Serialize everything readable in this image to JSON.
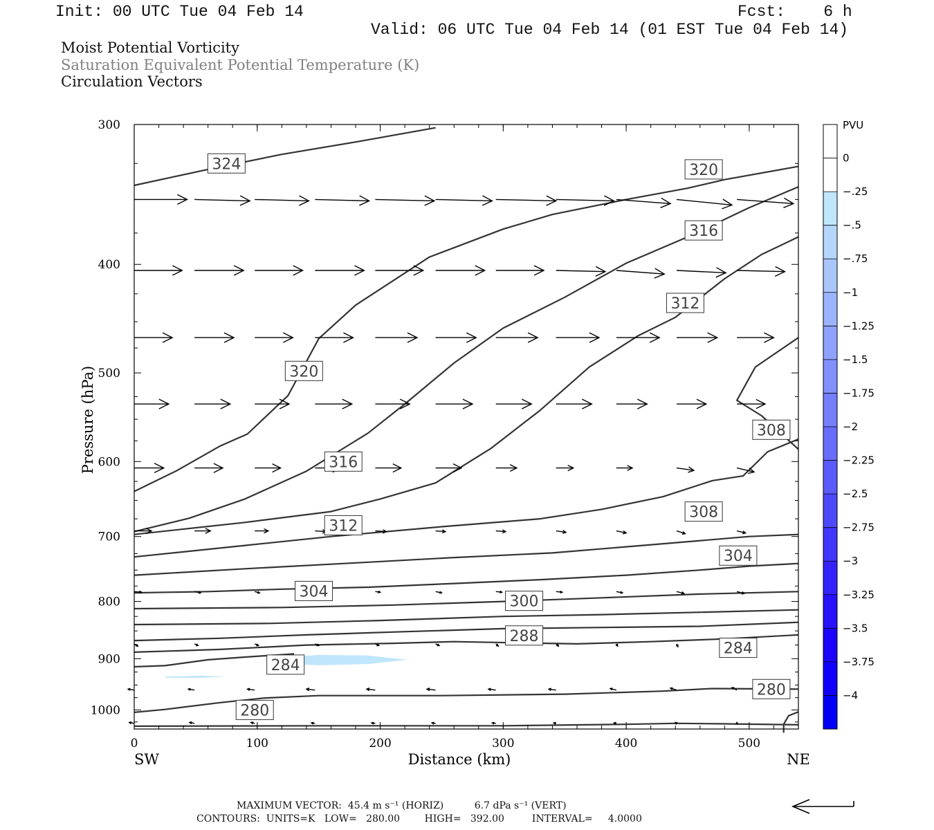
{
  "header": {
    "init": "Init: 00 UTC Tue 04 Feb 14",
    "fcst": "Fcst:    6 h",
    "valid": "Valid: 06 UTC Tue 04 Feb 14 (01 EST Tue 04 Feb 14)"
  },
  "fields": [
    "Moist Potential Vorticity",
    "Saturation Equivalent Potential Temperature (K)",
    "Circulation Vectors"
  ],
  "footer": {
    "vector_line": "MAXIMUM VECTOR:  45.4 m s⁻¹ (HORIZ)          6.7 dPa s⁻¹ (VERT)",
    "contour_line": "CONTOURS:  UNITS=K   LOW=   280.00        HIGH=   392.00         INTERVAL=     4.0000"
  },
  "colors": {
    "contour": "#333333",
    "pv_fill": "#bfe6fb",
    "frame": "#000000"
  },
  "chart_data": {
    "type": "cross-section",
    "xlabel": "Distance (km)",
    "ylabel": "Pressure (hPa)",
    "xlim": [
      0,
      540
    ],
    "ylim": [
      300,
      1040
    ],
    "y_scale": "log",
    "x_ticks": [
      0,
      100,
      200,
      300,
      400,
      500
    ],
    "y_ticks": [
      300,
      400,
      500,
      600,
      700,
      800,
      900,
      1000
    ],
    "end_labels": {
      "left": "SW",
      "right": "NE"
    },
    "colorbar": {
      "unit": "PVU",
      "ticks": [
        "0",
        "-.25",
        "-.5",
        "-.75",
        "-1",
        "-1.25",
        "-1.5",
        "-1.75",
        "-2",
        "-2.25",
        "-2.5",
        "-2.75",
        "-3",
        "-3.25",
        "-3.5",
        "-3.75",
        "-4"
      ],
      "colors": [
        "#ffffff",
        "#ffffff",
        "#bfe6fb",
        "#b5d6fb",
        "#a9c6fb",
        "#9cb4fb",
        "#8fa2fb",
        "#8290fb",
        "#757efb",
        "#686cfb",
        "#5b5afb",
        "#4e48fb",
        "#4136fb",
        "#3424fb",
        "#2812fb",
        "#1c04fb",
        "#1000fb",
        "#0000f5"
      ]
    },
    "theta_contours": [
      {
        "value": 324,
        "label": "324",
        "label_at": [
          75,
          325
        ],
        "points": [
          [
            0,
            340
          ],
          [
            60,
            329
          ],
          [
            120,
            319
          ],
          [
            180,
            311
          ],
          [
            245,
            302
          ]
        ]
      },
      {
        "value": 320,
        "label": "320",
        "label_at": [
          138,
          498
        ],
        "points": [
          [
            0,
            638
          ],
          [
            35,
            611
          ],
          [
            70,
            581
          ],
          [
            92,
            567
          ],
          [
            125,
            524
          ],
          [
            150,
            466
          ],
          [
            180,
            435
          ],
          [
            240,
            394
          ],
          [
            300,
            372
          ],
          [
            340,
            361
          ],
          [
            400,
            350
          ],
          [
            450,
            342
          ],
          [
            480,
            336
          ],
          [
            540,
            327
          ]
        ]
      },
      {
        "value": 320,
        "label": "320",
        "label_at": [
          463,
          329
        ],
        "points": []
      },
      {
        "value": 316,
        "label": "316",
        "label_at": [
          170,
          600
        ],
        "points": [
          [
            0,
            693
          ],
          [
            45,
            674
          ],
          [
            90,
            648
          ],
          [
            140,
            612
          ],
          [
            190,
            566
          ],
          [
            220,
            533
          ],
          [
            260,
            490
          ],
          [
            300,
            456
          ],
          [
            350,
            428
          ],
          [
            400,
            399
          ],
          [
            450,
            378
          ],
          [
            500,
            356
          ],
          [
            540,
            341
          ]
        ]
      },
      {
        "value": 316,
        "label": "316",
        "label_at": [
          463,
          373
        ],
        "points": []
      },
      {
        "value": 312,
        "label": "312",
        "label_at": [
          170,
          684
        ],
        "points": [
          [
            0,
            697
          ],
          [
            90,
            680
          ],
          [
            160,
            665
          ],
          [
            200,
            648
          ],
          [
            245,
            627
          ],
          [
            290,
            584
          ],
          [
            330,
            540
          ],
          [
            370,
            494
          ],
          [
            410,
            463
          ],
          [
            440,
            446
          ],
          [
            480,
            412
          ],
          [
            510,
            392
          ],
          [
            540,
            378
          ]
        ]
      },
      {
        "value": 312,
        "label": "312",
        "label_at": [
          448,
          433
        ],
        "points": []
      },
      {
        "value": 308,
        "label": "308",
        "label_at": [
          518,
          562
        ],
        "points": [
          [
            540,
            585
          ],
          [
            510,
            546
          ],
          [
            490,
            529
          ],
          [
            505,
            494
          ],
          [
            540,
            465
          ]
        ]
      },
      {
        "value": 308,
        "label": "308",
        "label_at": [
          463,
          665
        ],
        "points": [
          [
            0,
            730
          ],
          [
            90,
            713
          ],
          [
            160,
            700
          ],
          [
            250,
            686
          ],
          [
            330,
            675
          ],
          [
            380,
            662
          ],
          [
            430,
            645
          ],
          [
            470,
            624
          ],
          [
            495,
            618
          ],
          [
            515,
            588
          ],
          [
            540,
            573
          ]
        ]
      },
      {
        "value": 304,
        "label": "304",
        "label_at": [
          491,
          728
        ],
        "points": [
          [
            0,
            758
          ],
          [
            90,
            748
          ],
          [
            180,
            739
          ],
          [
            260,
            731
          ],
          [
            340,
            724
          ],
          [
            420,
            712
          ],
          [
            500,
            700
          ],
          [
            540,
            697
          ]
        ]
      },
      {
        "value": 304,
        "label": "304",
        "label_at": [
          146,
          783
        ],
        "points": [
          [
            0,
            786
          ],
          [
            60,
            784
          ],
          [
            120,
            780
          ],
          [
            190,
            777
          ],
          [
            260,
            771
          ],
          [
            330,
            765
          ],
          [
            400,
            758
          ],
          [
            460,
            750
          ],
          [
            500,
            744
          ],
          [
            540,
            740
          ]
        ]
      },
      {
        "value": 300,
        "label": "300",
        "label_at": [
          317,
          799
        ],
        "points": [
          [
            0,
            812
          ],
          [
            120,
            810
          ],
          [
            210,
            806
          ],
          [
            300,
            800
          ],
          [
            380,
            794
          ],
          [
            460,
            788
          ],
          [
            540,
            784
          ]
        ]
      },
      {
        "value": 296,
        "label": "",
        "label_at": null,
        "points": [
          [
            0,
            839
          ],
          [
            110,
            837
          ],
          [
            200,
            832
          ],
          [
            300,
            825
          ],
          [
            380,
            822
          ],
          [
            460,
            818
          ],
          [
            540,
            814
          ]
        ]
      },
      {
        "value": 292,
        "label": "",
        "label_at": null,
        "points": [
          [
            0,
            867
          ],
          [
            70,
            863
          ],
          [
            140,
            857
          ],
          [
            210,
            852
          ],
          [
            300,
            846
          ],
          [
            380,
            844
          ],
          [
            460,
            842
          ],
          [
            540,
            835
          ]
        ]
      },
      {
        "value": 288,
        "label": "288",
        "label_at": [
          317,
          858
        ],
        "points": []
      },
      {
        "value": 288,
        "label": "",
        "label_at": null,
        "points": [
          [
            0,
            888
          ],
          [
            70,
            883
          ],
          [
            140,
            875
          ],
          [
            210,
            872
          ],
          [
            260,
            869
          ],
          [
            310,
            871
          ],
          [
            360,
            873
          ],
          [
            420,
            869
          ],
          [
            480,
            864
          ],
          [
            540,
            857
          ]
        ]
      },
      {
        "value": 284,
        "label": "284",
        "label_at": [
          491,
          880
        ],
        "points": []
      },
      {
        "value": 284,
        "label": "284",
        "label_at": [
          123,
          911
        ],
        "points": [
          [
            0,
            915
          ],
          [
            25,
            913
          ],
          [
            60,
            902
          ],
          [
            90,
            897
          ],
          [
            130,
            891
          ]
        ]
      },
      {
        "value": 280,
        "label": "280",
        "label_at": [
          98,
          1000
        ],
        "points": [
          [
            0,
            1005
          ],
          [
            25,
            999
          ],
          [
            70,
            985
          ],
          [
            105,
            976
          ],
          [
            150,
            971
          ],
          [
            250,
            971
          ],
          [
            350,
            968
          ],
          [
            430,
            962
          ],
          [
            470,
            957
          ],
          [
            540,
            958
          ]
        ]
      },
      {
        "value": 280,
        "label": "280",
        "label_at": [
          518,
          958
        ],
        "points": []
      },
      {
        "value": 276,
        "label": "",
        "label_at": null,
        "points": [
          [
            0,
            1034
          ],
          [
            150,
            1033
          ],
          [
            300,
            1033
          ],
          [
            400,
            1030
          ],
          [
            440,
            1028
          ],
          [
            480,
            1029
          ],
          [
            540,
            1031
          ]
        ]
      },
      {
        "value": 276,
        "label": "",
        "label_at": null,
        "points": [
          [
            528,
            1048
          ],
          [
            528,
            1030
          ],
          [
            532,
            1012
          ],
          [
            540,
            1004
          ]
        ]
      }
    ],
    "pv_shading": [
      {
        "range": "-0.25 to -0.5",
        "points": [
          [
            125,
            897
          ],
          [
            150,
            893
          ],
          [
            190,
            894
          ],
          [
            222,
            902
          ],
          [
            190,
            910
          ],
          [
            150,
            912
          ],
          [
            125,
            910
          ]
        ]
      },
      {
        "range": "-0.25 to -0.5",
        "points": [
          [
            25,
            934
          ],
          [
            55,
            932
          ],
          [
            74,
            934
          ],
          [
            55,
            936
          ],
          [
            25,
            936
          ]
        ]
      }
    ],
    "vectors": {
      "levels_hpa": [
        350,
        405,
        465,
        533,
        608,
        692,
        784,
        873,
        960,
        1028
      ],
      "x_km": [
        0,
        49,
        98,
        147,
        196,
        245,
        294,
        343,
        392,
        441,
        490
      ],
      "dx_km": [
        [
          43,
          45,
          44,
          44,
          48,
          46,
          49,
          47,
          44,
          45,
          46
        ],
        [
          39,
          40,
          39,
          40,
          39,
          40,
          39,
          40,
          39,
          40,
          39
        ],
        [
          31,
          32,
          31,
          31,
          34,
          33,
          34,
          35,
          35,
          33,
          30
        ],
        [
          28,
          29,
          28,
          30,
          28,
          30,
          29,
          29,
          25,
          24,
          23
        ],
        [
          24,
          23,
          21,
          21,
          21,
          21,
          17,
          14,
          13,
          14,
          14
        ],
        [
          14,
          13,
          11,
          9,
          9,
          8,
          8,
          8,
          8,
          7,
          7
        ],
        [
          6,
          5,
          4,
          4,
          4,
          5,
          5,
          5,
          5,
          6,
          6
        ],
        [
          3,
          3,
          3,
          3,
          3,
          3,
          2,
          2,
          1,
          1,
          0
        ],
        [
          -5,
          -5,
          -6,
          -7,
          -7,
          -7,
          -6,
          -6,
          -5,
          -5,
          -4
        ],
        [
          -4,
          -4,
          -3,
          -3,
          -3,
          -3,
          -3,
          -2,
          -2,
          -1,
          0
        ]
      ],
      "dp_hpa": [
        [
          0,
          1,
          1,
          1,
          1,
          1,
          1,
          1,
          3,
          4,
          3
        ],
        [
          0,
          0,
          0,
          0,
          0,
          0,
          0,
          1,
          3,
          2,
          1
        ],
        [
          0,
          0,
          0,
          0,
          0,
          0,
          0,
          0,
          0,
          0,
          0
        ],
        [
          0,
          0,
          0,
          0,
          0,
          0,
          0,
          0,
          0,
          0,
          0
        ],
        [
          0,
          0,
          0,
          0,
          0,
          0,
          0,
          0,
          0,
          3,
          5
        ],
        [
          0,
          0,
          0,
          1,
          1,
          1,
          1,
          2,
          3,
          4,
          3
        ],
        [
          1,
          2,
          2,
          1,
          1,
          2,
          1,
          1,
          2,
          3,
          3
        ],
        [
          4,
          3,
          3,
          3,
          3,
          3,
          4,
          4,
          4,
          5,
          6
        ],
        [
          -2,
          -2,
          -2,
          -2,
          -2,
          -2,
          -2,
          -2,
          -3,
          -4,
          -5
        ],
        [
          -2,
          -2,
          -2,
          -1,
          -1,
          -1,
          -1,
          -1,
          -1,
          -2,
          -2
        ]
      ]
    },
    "reference_vector": {
      "horiz": 45.4,
      "vert": 6.7
    }
  }
}
